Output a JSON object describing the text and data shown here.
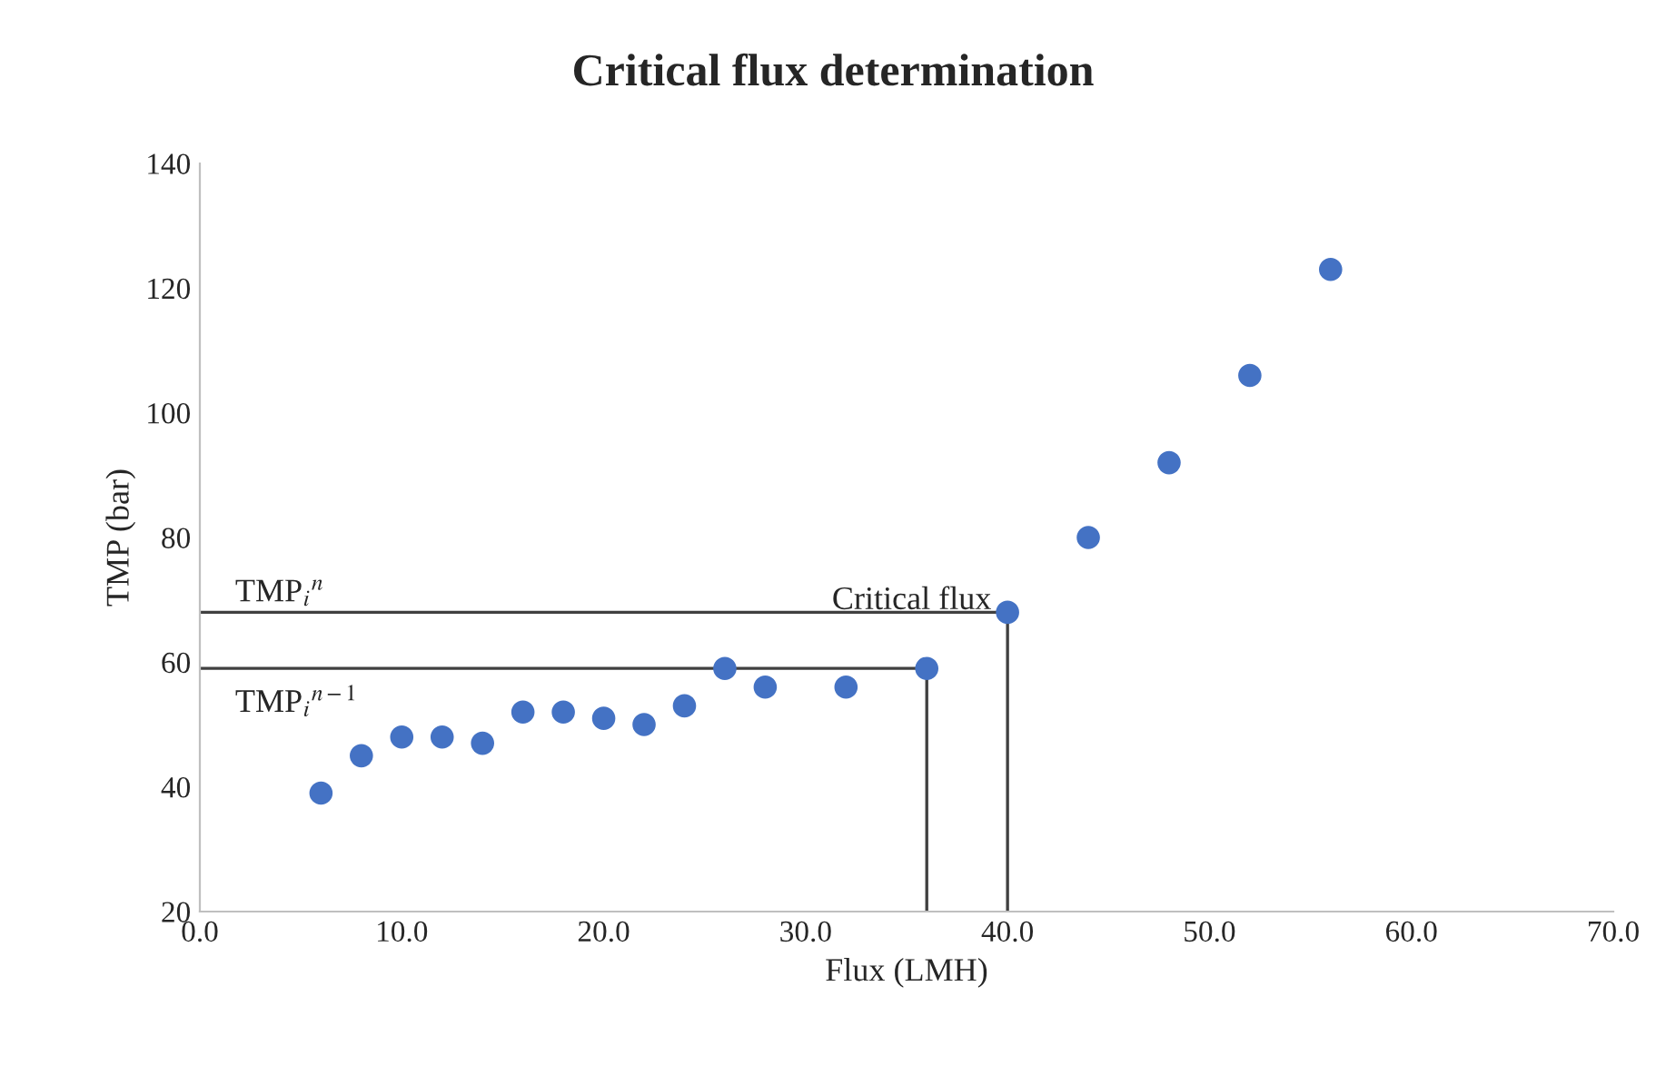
{
  "chart_data": {
    "type": "scatter",
    "title": "Critical flux determination",
    "xlabel": "Flux (LMH)",
    "ylabel": "TMP (bar)",
    "marker": "circle",
    "grid": false,
    "legend": false,
    "xlim": [
      0,
      70
    ],
    "ylim": [
      20,
      140
    ],
    "xticks": [
      {
        "value": 0,
        "label": "0.0"
      },
      {
        "value": 10,
        "label": "10.0"
      },
      {
        "value": 20,
        "label": "20.0"
      },
      {
        "value": 30,
        "label": "30.0"
      },
      {
        "value": 40,
        "label": "40.0"
      },
      {
        "value": 50,
        "label": "50.0"
      },
      {
        "value": 60,
        "label": "60.0"
      },
      {
        "value": 70,
        "label": "70.0"
      }
    ],
    "yticks": [
      20,
      40,
      60,
      80,
      100,
      120,
      140
    ],
    "series": [
      {
        "color": "#4472c4",
        "x": [
          6,
          8,
          10,
          12,
          14,
          16,
          18,
          20,
          22,
          24,
          26,
          28,
          32,
          36,
          40,
          44,
          48,
          52,
          56
        ],
        "values": [
          39,
          45,
          48,
          48,
          47,
          52,
          52,
          51,
          50,
          53,
          59,
          56,
          56,
          59,
          68,
          80,
          92,
          106,
          123
        ]
      },
      {
        "type": "line",
        "color": "#404040",
        "marker": "none",
        "x": [
          0,
          40,
          40
        ],
        "values": [
          68,
          68,
          20
        ]
      },
      {
        "type": "line",
        "color": "#404040",
        "marker": "none",
        "x": [
          0,
          36,
          36
        ],
        "values": [
          59,
          59,
          20
        ]
      }
    ],
    "annotations": [
      "Critical flux",
      "TMP$_{i}$$^{n}$",
      "TMP$_{i}$$^{n−1}$"
    ]
  }
}
